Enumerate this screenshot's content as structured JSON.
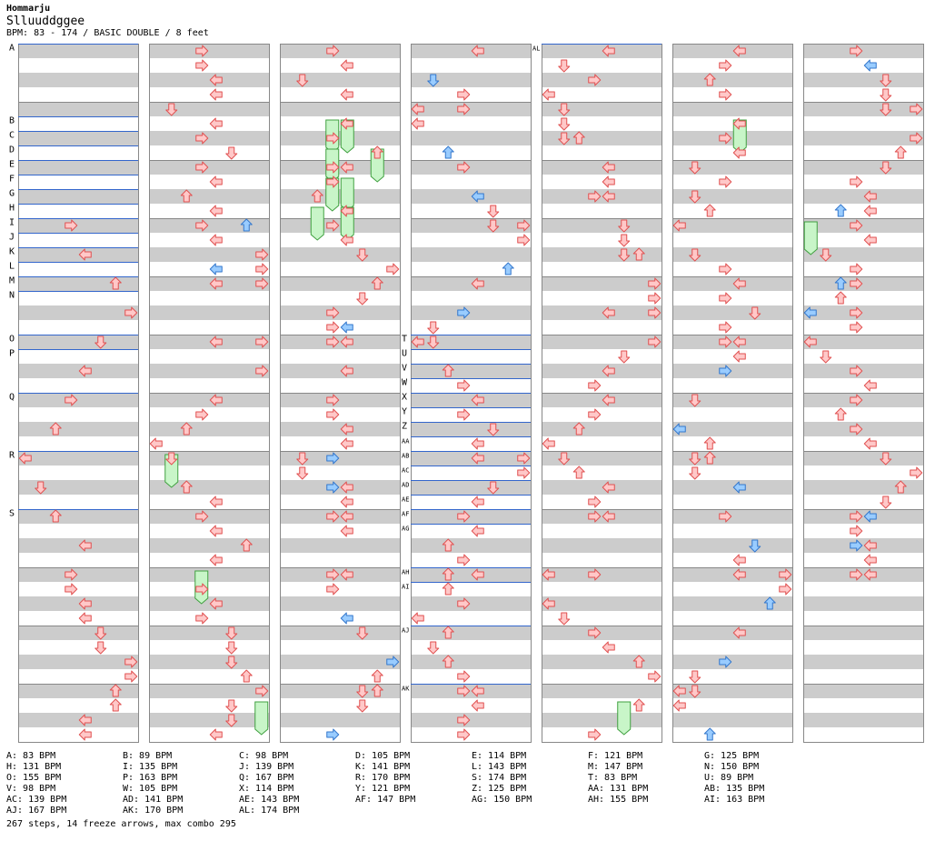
{
  "header": {
    "artist": "Hommarju",
    "title": "Slluuddggee",
    "info": "BPM: 83 - 174 / BASIC DOUBLE / 8 feet"
  },
  "colors": {
    "stripe_gray": "#cccccc",
    "stripe_white": "#ffffff",
    "border": "#888888",
    "marker_line": "#3366cc",
    "red_fill": "#ffc8c8",
    "red_stroke": "#e05050",
    "blue_fill": "#99ccff",
    "blue_stroke": "#3377cc",
    "freeze_fill": "#c8f5c8",
    "freeze_stroke": "#40a040"
  },
  "markers": [
    {
      "label": "A",
      "col": 0,
      "beat": 0
    },
    {
      "label": "B",
      "col": 0,
      "beat": 5
    },
    {
      "label": "C",
      "col": 0,
      "beat": 6
    },
    {
      "label": "D",
      "col": 0,
      "beat": 7
    },
    {
      "label": "E",
      "col": 0,
      "beat": 8
    },
    {
      "label": "F",
      "col": 0,
      "beat": 9
    },
    {
      "label": "G",
      "col": 0,
      "beat": 10
    },
    {
      "label": "H",
      "col": 0,
      "beat": 11
    },
    {
      "label": "I",
      "col": 0,
      "beat": 12
    },
    {
      "label": "J",
      "col": 0,
      "beat": 13
    },
    {
      "label": "K",
      "col": 0,
      "beat": 14
    },
    {
      "label": "L",
      "col": 0,
      "beat": 15
    },
    {
      "label": "M",
      "col": 0,
      "beat": 16
    },
    {
      "label": "N",
      "col": 0,
      "beat": 17
    },
    {
      "label": "O",
      "col": 0,
      "beat": 20
    },
    {
      "label": "P",
      "col": 0,
      "beat": 21
    },
    {
      "label": "Q",
      "col": 0,
      "beat": 24
    },
    {
      "label": "R",
      "col": 0,
      "beat": 28
    },
    {
      "label": "S",
      "col": 0,
      "beat": 32
    },
    {
      "label": "T",
      "col": 3,
      "beat": 20
    },
    {
      "label": "U",
      "col": 3,
      "beat": 21
    },
    {
      "label": "V",
      "col": 3,
      "beat": 22
    },
    {
      "label": "W",
      "col": 3,
      "beat": 23
    },
    {
      "label": "X",
      "col": 3,
      "beat": 24
    },
    {
      "label": "Y",
      "col": 3,
      "beat": 25
    },
    {
      "label": "Z",
      "col": 3,
      "beat": 26
    },
    {
      "label": "AA",
      "col": 3,
      "beat": 27
    },
    {
      "label": "AB",
      "col": 3,
      "beat": 28
    },
    {
      "label": "AC",
      "col": 3,
      "beat": 29
    },
    {
      "label": "AD",
      "col": 3,
      "beat": 30
    },
    {
      "label": "AE",
      "col": 3,
      "beat": 31
    },
    {
      "label": "AF",
      "col": 3,
      "beat": 32
    },
    {
      "label": "AG",
      "col": 3,
      "beat": 33
    },
    {
      "label": "AH",
      "col": 3,
      "beat": 36
    },
    {
      "label": "AI",
      "col": 3,
      "beat": 37
    },
    {
      "label": "AJ",
      "col": 3,
      "beat": 40
    },
    {
      "label": "AK",
      "col": 3,
      "beat": 44
    },
    {
      "label": "AL",
      "col": 4,
      "beat": 0
    }
  ],
  "notes": [
    [
      0,
      12,
      3,
      "r"
    ],
    [
      0,
      14,
      4,
      "r"
    ],
    [
      0,
      16,
      6,
      "r"
    ],
    [
      0,
      18,
      7,
      "r"
    ],
    [
      0,
      20,
      5,
      "r"
    ],
    [
      0,
      22,
      4,
      "r"
    ],
    [
      0,
      24,
      3,
      "r"
    ],
    [
      0,
      26,
      2,
      "r"
    ],
    [
      0,
      28,
      0,
      "r"
    ],
    [
      0,
      30,
      1,
      "r"
    ],
    [
      0,
      32,
      2,
      "r"
    ],
    [
      0,
      34,
      4,
      "r"
    ],
    [
      0,
      36,
      3,
      "r"
    ],
    [
      0,
      37,
      3,
      "r"
    ],
    [
      0,
      38,
      4,
      "r"
    ],
    [
      0,
      39,
      4,
      "r"
    ],
    [
      0,
      40,
      5,
      "r"
    ],
    [
      0,
      41,
      5,
      "r"
    ],
    [
      0,
      42,
      7,
      "r"
    ],
    [
      0,
      43,
      7,
      "r"
    ],
    [
      0,
      44,
      6,
      "r"
    ],
    [
      0,
      45,
      6,
      "r"
    ],
    [
      0,
      46,
      4,
      "r"
    ],
    [
      0,
      47,
      4,
      "r"
    ],
    [
      1,
      0,
      3,
      "r"
    ],
    [
      1,
      1,
      3,
      "r"
    ],
    [
      1,
      2,
      4,
      "r"
    ],
    [
      1,
      3,
      4,
      "r"
    ],
    [
      1,
      4,
      1,
      "r"
    ],
    [
      1,
      5,
      4,
      "r"
    ],
    [
      1,
      6,
      3,
      "r"
    ],
    [
      1,
      7,
      5,
      "r"
    ],
    [
      1,
      8,
      3,
      "r"
    ],
    [
      1,
      9,
      4,
      "r"
    ],
    [
      1,
      10,
      2,
      "r"
    ],
    [
      1,
      11,
      4,
      "r"
    ],
    [
      1,
      12,
      3,
      "r"
    ],
    [
      1,
      12,
      6,
      "b"
    ],
    [
      1,
      13,
      4,
      "r"
    ],
    [
      1,
      14,
      7,
      "r"
    ],
    [
      1,
      15,
      4,
      "b"
    ],
    [
      1,
      15,
      7,
      "r"
    ],
    [
      1,
      16,
      4,
      "r"
    ],
    [
      1,
      16,
      7,
      "r"
    ],
    [
      1,
      20,
      4,
      "r"
    ],
    [
      1,
      20,
      7,
      "r"
    ],
    [
      1,
      22,
      7,
      "r"
    ],
    [
      1,
      24,
      4,
      "r"
    ],
    [
      1,
      25,
      3,
      "r"
    ],
    [
      1,
      26,
      2,
      "r"
    ],
    [
      1,
      27,
      0,
      "r"
    ],
    [
      1,
      28,
      1,
      "r"
    ],
    [
      1,
      30,
      2,
      "r"
    ],
    [
      1,
      31,
      4,
      "r"
    ],
    [
      1,
      32,
      3,
      "r"
    ],
    [
      1,
      33,
      4,
      "r"
    ],
    [
      1,
      34,
      6,
      "r"
    ],
    [
      1,
      35,
      4,
      "r"
    ],
    [
      1,
      37,
      3,
      "r"
    ],
    [
      1,
      38,
      4,
      "r"
    ],
    [
      1,
      39,
      3,
      "r"
    ],
    [
      1,
      40,
      5,
      "r"
    ],
    [
      1,
      41,
      5,
      "r"
    ],
    [
      1,
      42,
      5,
      "r"
    ],
    [
      1,
      43,
      6,
      "r"
    ],
    [
      1,
      44,
      7,
      "r"
    ],
    [
      1,
      45,
      5,
      "r"
    ],
    [
      1,
      46,
      5,
      "r"
    ],
    [
      1,
      47,
      4,
      "r"
    ],
    [
      2,
      0,
      3,
      "r"
    ],
    [
      2,
      1,
      4,
      "r"
    ],
    [
      2,
      2,
      1,
      "r"
    ],
    [
      2,
      3,
      4,
      "r"
    ],
    [
      2,
      5,
      4,
      "r"
    ],
    [
      2,
      6,
      3,
      "r"
    ],
    [
      2,
      7,
      6,
      "r"
    ],
    [
      2,
      8,
      3,
      "r"
    ],
    [
      2,
      8,
      4,
      "r"
    ],
    [
      2,
      9,
      3,
      "r"
    ],
    [
      2,
      10,
      2,
      "r"
    ],
    [
      2,
      11,
      4,
      "r"
    ],
    [
      2,
      12,
      3,
      "r"
    ],
    [
      2,
      13,
      4,
      "r"
    ],
    [
      2,
      14,
      5,
      "r"
    ],
    [
      2,
      15,
      7,
      "r"
    ],
    [
      2,
      16,
      6,
      "r"
    ],
    [
      2,
      17,
      5,
      "r"
    ],
    [
      2,
      18,
      3,
      "r"
    ],
    [
      2,
      19,
      3,
      "r"
    ],
    [
      2,
      19,
      4,
      "b"
    ],
    [
      2,
      20,
      3,
      "r"
    ],
    [
      2,
      20,
      4,
      "r"
    ],
    [
      2,
      22,
      4,
      "r"
    ],
    [
      2,
      24,
      3,
      "r"
    ],
    [
      2,
      25,
      3,
      "r"
    ],
    [
      2,
      26,
      4,
      "r"
    ],
    [
      2,
      27,
      4,
      "r"
    ],
    [
      2,
      28,
      1,
      "r"
    ],
    [
      2,
      28,
      3,
      "b"
    ],
    [
      2,
      29,
      1,
      "r"
    ],
    [
      2,
      30,
      4,
      "r"
    ],
    [
      2,
      30,
      3,
      "b"
    ],
    [
      2,
      31,
      4,
      "r"
    ],
    [
      2,
      32,
      3,
      "r"
    ],
    [
      2,
      32,
      4,
      "r"
    ],
    [
      2,
      33,
      4,
      "r"
    ],
    [
      2,
      36,
      3,
      "r"
    ],
    [
      2,
      36,
      4,
      "r"
    ],
    [
      2,
      37,
      3,
      "r"
    ],
    [
      2,
      39,
      4,
      "b"
    ],
    [
      2,
      40,
      5,
      "r"
    ],
    [
      2,
      42,
      7,
      "b"
    ],
    [
      2,
      43,
      6,
      "r"
    ],
    [
      2,
      44,
      5,
      "r"
    ],
    [
      2,
      44,
      6,
      "r"
    ],
    [
      2,
      45,
      5,
      "r"
    ],
    [
      2,
      47,
      3,
      "b"
    ],
    [
      3,
      0,
      4,
      "r"
    ],
    [
      3,
      2,
      1,
      "b"
    ],
    [
      3,
      3,
      3,
      "r"
    ],
    [
      3,
      4,
      0,
      "r"
    ],
    [
      3,
      4,
      3,
      "r"
    ],
    [
      3,
      5,
      0,
      "r"
    ],
    [
      3,
      7,
      2,
      "b"
    ],
    [
      3,
      8,
      3,
      "r"
    ],
    [
      3,
      10,
      4,
      "b"
    ],
    [
      3,
      11,
      5,
      "r"
    ],
    [
      3,
      12,
      5,
      "r"
    ],
    [
      3,
      12,
      7,
      "r"
    ],
    [
      3,
      13,
      7,
      "r"
    ],
    [
      3,
      15,
      6,
      "b"
    ],
    [
      3,
      16,
      4,
      "r"
    ],
    [
      3,
      18,
      3,
      "b"
    ],
    [
      3,
      19,
      1,
      "r"
    ],
    [
      3,
      20,
      0,
      "r"
    ],
    [
      3,
      20,
      1,
      "r"
    ],
    [
      3,
      22,
      2,
      "r"
    ],
    [
      3,
      23,
      3,
      "r"
    ],
    [
      3,
      24,
      4,
      "r"
    ],
    [
      3,
      25,
      3,
      "r"
    ],
    [
      3,
      26,
      5,
      "r"
    ],
    [
      3,
      27,
      4,
      "r"
    ],
    [
      3,
      28,
      4,
      "r"
    ],
    [
      3,
      28,
      7,
      "r"
    ],
    [
      3,
      29,
      7,
      "r"
    ],
    [
      3,
      30,
      5,
      "r"
    ],
    [
      3,
      31,
      4,
      "r"
    ],
    [
      3,
      32,
      3,
      "r"
    ],
    [
      3,
      33,
      4,
      "r"
    ],
    [
      3,
      34,
      2,
      "r"
    ],
    [
      3,
      35,
      3,
      "r"
    ],
    [
      3,
      36,
      2,
      "r"
    ],
    [
      3,
      36,
      4,
      "r"
    ],
    [
      3,
      37,
      2,
      "r"
    ],
    [
      3,
      38,
      3,
      "r"
    ],
    [
      3,
      39,
      0,
      "r"
    ],
    [
      3,
      40,
      2,
      "r"
    ],
    [
      3,
      41,
      1,
      "r"
    ],
    [
      3,
      42,
      2,
      "r"
    ],
    [
      3,
      43,
      3,
      "r"
    ],
    [
      3,
      44,
      3,
      "r"
    ],
    [
      3,
      44,
      4,
      "r"
    ],
    [
      3,
      45,
      4,
      "r"
    ],
    [
      3,
      46,
      3,
      "r"
    ],
    [
      3,
      47,
      3,
      "r"
    ],
    [
      4,
      0,
      4,
      "r"
    ],
    [
      4,
      1,
      1,
      "r"
    ],
    [
      4,
      2,
      3,
      "r"
    ],
    [
      4,
      3,
      0,
      "r"
    ],
    [
      4,
      4,
      1,
      "r"
    ],
    [
      4,
      5,
      1,
      "r"
    ],
    [
      4,
      6,
      1,
      "r"
    ],
    [
      4,
      6,
      2,
      "r"
    ],
    [
      4,
      8,
      4,
      "r"
    ],
    [
      4,
      9,
      4,
      "r"
    ],
    [
      4,
      10,
      3,
      "r"
    ],
    [
      4,
      10,
      4,
      "r"
    ],
    [
      4,
      12,
      5,
      "r"
    ],
    [
      4,
      13,
      5,
      "r"
    ],
    [
      4,
      14,
      5,
      "r"
    ],
    [
      4,
      14,
      6,
      "r"
    ],
    [
      4,
      16,
      7,
      "r"
    ],
    [
      4,
      17,
      7,
      "r"
    ],
    [
      4,
      18,
      4,
      "r"
    ],
    [
      4,
      18,
      7,
      "r"
    ],
    [
      4,
      20,
      7,
      "r"
    ],
    [
      4,
      21,
      5,
      "r"
    ],
    [
      4,
      22,
      4,
      "r"
    ],
    [
      4,
      23,
      3,
      "r"
    ],
    [
      4,
      24,
      4,
      "r"
    ],
    [
      4,
      25,
      3,
      "r"
    ],
    [
      4,
      26,
      2,
      "r"
    ],
    [
      4,
      27,
      0,
      "r"
    ],
    [
      4,
      28,
      1,
      "r"
    ],
    [
      4,
      29,
      2,
      "r"
    ],
    [
      4,
      30,
      4,
      "r"
    ],
    [
      4,
      31,
      3,
      "r"
    ],
    [
      4,
      32,
      3,
      "r"
    ],
    [
      4,
      32,
      4,
      "r"
    ],
    [
      4,
      36,
      0,
      "r"
    ],
    [
      4,
      36,
      3,
      "r"
    ],
    [
      4,
      38,
      0,
      "r"
    ],
    [
      4,
      39,
      1,
      "r"
    ],
    [
      4,
      40,
      3,
      "r"
    ],
    [
      4,
      41,
      4,
      "r"
    ],
    [
      4,
      42,
      6,
      "r"
    ],
    [
      4,
      43,
      7,
      "r"
    ],
    [
      4,
      45,
      6,
      "r"
    ],
    [
      4,
      47,
      3,
      "r"
    ],
    [
      5,
      0,
      4,
      "r"
    ],
    [
      5,
      1,
      3,
      "r"
    ],
    [
      5,
      2,
      2,
      "r"
    ],
    [
      5,
      3,
      3,
      "r"
    ],
    [
      5,
      5,
      4,
      "r"
    ],
    [
      5,
      6,
      3,
      "r"
    ],
    [
      5,
      7,
      4,
      "r"
    ],
    [
      5,
      8,
      1,
      "r"
    ],
    [
      5,
      9,
      3,
      "r"
    ],
    [
      5,
      10,
      1,
      "r"
    ],
    [
      5,
      11,
      2,
      "r"
    ],
    [
      5,
      12,
      0,
      "r"
    ],
    [
      5,
      14,
      1,
      "r"
    ],
    [
      5,
      15,
      3,
      "r"
    ],
    [
      5,
      16,
      4,
      "r"
    ],
    [
      5,
      17,
      3,
      "r"
    ],
    [
      5,
      18,
      5,
      "r"
    ],
    [
      5,
      19,
      3,
      "r"
    ],
    [
      5,
      20,
      3,
      "r"
    ],
    [
      5,
      20,
      4,
      "r"
    ],
    [
      5,
      21,
      4,
      "r"
    ],
    [
      5,
      22,
      3,
      "b"
    ],
    [
      5,
      24,
      1,
      "r"
    ],
    [
      5,
      26,
      0,
      "b"
    ],
    [
      5,
      27,
      2,
      "r"
    ],
    [
      5,
      28,
      1,
      "r"
    ],
    [
      5,
      28,
      2,
      "r"
    ],
    [
      5,
      29,
      1,
      "r"
    ],
    [
      5,
      30,
      4,
      "b"
    ],
    [
      5,
      32,
      3,
      "r"
    ],
    [
      5,
      34,
      5,
      "b"
    ],
    [
      5,
      35,
      4,
      "r"
    ],
    [
      5,
      36,
      4,
      "r"
    ],
    [
      5,
      36,
      7,
      "r"
    ],
    [
      5,
      37,
      7,
      "r"
    ],
    [
      5,
      38,
      6,
      "b"
    ],
    [
      5,
      40,
      4,
      "r"
    ],
    [
      5,
      42,
      3,
      "b"
    ],
    [
      5,
      43,
      1,
      "r"
    ],
    [
      5,
      44,
      0,
      "r"
    ],
    [
      5,
      44,
      1,
      "r"
    ],
    [
      5,
      45,
      0,
      "r"
    ],
    [
      5,
      47,
      2,
      "b"
    ],
    [
      6,
      0,
      3,
      "r"
    ],
    [
      6,
      1,
      4,
      "b"
    ],
    [
      6,
      2,
      5,
      "r"
    ],
    [
      6,
      3,
      5,
      "r"
    ],
    [
      6,
      4,
      5,
      "r"
    ],
    [
      6,
      4,
      7,
      "r"
    ],
    [
      6,
      6,
      7,
      "r"
    ],
    [
      6,
      7,
      6,
      "r"
    ],
    [
      6,
      8,
      5,
      "r"
    ],
    [
      6,
      9,
      3,
      "r"
    ],
    [
      6,
      10,
      4,
      "r"
    ],
    [
      6,
      11,
      2,
      "b"
    ],
    [
      6,
      11,
      4,
      "r"
    ],
    [
      6,
      12,
      3,
      "r"
    ],
    [
      6,
      13,
      4,
      "r"
    ],
    [
      6,
      14,
      1,
      "r"
    ],
    [
      6,
      15,
      3,
      "r"
    ],
    [
      6,
      16,
      2,
      "b"
    ],
    [
      6,
      16,
      3,
      "r"
    ],
    [
      6,
      17,
      2,
      "r"
    ],
    [
      6,
      18,
      0,
      "b"
    ],
    [
      6,
      18,
      3,
      "r"
    ],
    [
      6,
      19,
      3,
      "r"
    ],
    [
      6,
      20,
      0,
      "r"
    ],
    [
      6,
      21,
      1,
      "r"
    ],
    [
      6,
      22,
      3,
      "r"
    ],
    [
      6,
      23,
      4,
      "r"
    ],
    [
      6,
      24,
      3,
      "r"
    ],
    [
      6,
      25,
      2,
      "r"
    ],
    [
      6,
      26,
      3,
      "r"
    ],
    [
      6,
      27,
      4,
      "r"
    ],
    [
      6,
      28,
      5,
      "r"
    ],
    [
      6,
      29,
      7,
      "r"
    ],
    [
      6,
      30,
      6,
      "r"
    ],
    [
      6,
      31,
      5,
      "r"
    ],
    [
      6,
      32,
      3,
      "r"
    ],
    [
      6,
      32,
      4,
      "b"
    ],
    [
      6,
      33,
      3,
      "r"
    ],
    [
      6,
      34,
      3,
      "b"
    ],
    [
      6,
      34,
      4,
      "r"
    ],
    [
      6,
      35,
      4,
      "r"
    ],
    [
      6,
      36,
      3,
      "r"
    ],
    [
      6,
      36,
      4,
      "r"
    ]
  ],
  "freezes": [
    [
      1,
      28,
      1,
      30
    ],
    [
      1,
      36,
      3,
      38
    ],
    [
      1,
      45,
      7,
      47
    ],
    [
      2,
      5,
      3,
      7
    ],
    [
      2,
      5,
      4,
      7
    ],
    [
      2,
      7,
      3,
      9
    ],
    [
      2,
      7,
      6,
      9
    ],
    [
      2,
      9,
      3,
      11
    ],
    [
      2,
      9,
      4,
      11
    ],
    [
      2,
      11,
      2,
      13
    ],
    [
      2,
      11,
      4,
      13
    ],
    [
      4,
      45,
      5,
      47
    ],
    [
      5,
      5,
      4,
      7
    ],
    [
      6,
      12,
      0,
      14
    ]
  ],
  "bpm_legend": [
    [
      "A: 83 BPM",
      "B: 89 BPM",
      "C: 98 BPM",
      "D: 105 BPM",
      "E: 114 BPM",
      "F: 121 BPM",
      "G: 125 BPM"
    ],
    [
      "H: 131 BPM",
      "I: 135 BPM",
      "J: 139 BPM",
      "K: 141 BPM",
      "L: 143 BPM",
      "M: 147 BPM",
      "N: 150 BPM"
    ],
    [
      "O: 155 BPM",
      "P: 163 BPM",
      "Q: 167 BPM",
      "R: 170 BPM",
      "S: 174 BPM",
      "T: 83 BPM",
      "U: 89 BPM"
    ],
    [
      "V: 98 BPM",
      "W: 105 BPM",
      "X: 114 BPM",
      "Y: 121 BPM",
      "Z: 125 BPM",
      "AA: 131 BPM",
      "AB: 135 BPM"
    ],
    [
      "AC: 139 BPM",
      "AD: 141 BPM",
      "AE: 143 BPM",
      "AF: 147 BPM",
      "AG: 150 BPM",
      "AH: 155 BPM",
      "AI: 163 BPM"
    ],
    [
      "AJ: 167 BPM",
      "AK: 170 BPM",
      "AL: 174 BPM"
    ]
  ],
  "summary": "267 steps, 14 freeze arrows, max combo 295"
}
